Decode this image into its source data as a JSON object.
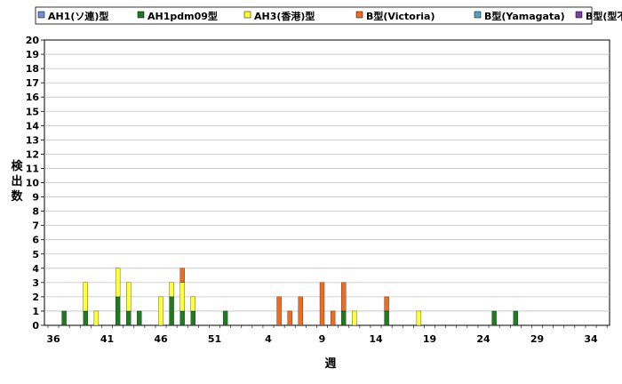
{
  "chart_data": {
    "type": "bar",
    "stacked": true,
    "xlabel": "週",
    "ylabel": "検出数",
    "ylim": [
      0,
      20
    ],
    "yticks": [
      0,
      1,
      2,
      3,
      4,
      5,
      6,
      7,
      8,
      9,
      10,
      11,
      12,
      13,
      14,
      15,
      16,
      17,
      18,
      19,
      20
    ],
    "grid": true,
    "legend_position": "top",
    "x_tick_labels": [
      "36",
      "41",
      "46",
      "51",
      "4",
      "9",
      "14",
      "19",
      "24",
      "29",
      "34"
    ],
    "categories": [
      "36",
      "37",
      "38",
      "39",
      "40",
      "41",
      "42",
      "43",
      "44",
      "45",
      "46",
      "47",
      "48",
      "49",
      "50",
      "51",
      "52",
      "53",
      "1",
      "2",
      "3",
      "4",
      "5",
      "6",
      "7",
      "8",
      "9",
      "10",
      "11",
      "12",
      "13",
      "14",
      "15",
      "16",
      "17",
      "18",
      "19",
      "20",
      "21",
      "22",
      "23",
      "24",
      "25",
      "26",
      "27",
      "28",
      "29",
      "30",
      "31",
      "32",
      "33",
      "34",
      "35"
    ],
    "series": [
      {
        "name": "AH1(ソ連)型",
        "color": "#6f8fd6",
        "values": [
          0,
          0,
          0,
          0,
          0,
          0,
          0,
          0,
          0,
          0,
          0,
          0,
          0,
          0,
          0,
          0,
          0,
          0,
          0,
          0,
          0,
          0,
          0,
          0,
          0,
          0,
          0,
          0,
          0,
          0,
          0,
          0,
          0,
          0,
          0,
          0,
          0,
          0,
          0,
          0,
          0,
          0,
          0,
          0,
          0,
          0,
          0,
          0,
          0,
          0,
          0,
          0,
          0
        ]
      },
      {
        "name": "AH1pdm09型",
        "color": "#1e7b1e",
        "values": [
          0,
          1,
          0,
          1,
          0,
          0,
          2,
          1,
          1,
          0,
          0,
          2,
          1,
          1,
          0,
          0,
          1,
          0,
          0,
          0,
          0,
          0,
          0,
          0,
          0,
          0,
          0,
          1,
          0,
          0,
          0,
          1,
          0,
          0,
          0,
          0,
          0,
          0,
          0,
          0,
          0,
          1,
          0,
          1,
          0,
          0,
          0,
          0,
          0,
          0,
          0,
          0,
          0
        ]
      },
      {
        "name": "AH3(香港)型",
        "color": "#ffff33",
        "values": [
          0,
          0,
          0,
          2,
          1,
          0,
          2,
          2,
          0,
          0,
          2,
          1,
          2,
          1,
          0,
          0,
          0,
          0,
          0,
          0,
          0,
          0,
          0,
          0,
          0,
          0,
          0,
          0,
          1,
          0,
          0,
          0,
          0,
          0,
          1,
          0,
          0,
          0,
          0,
          0,
          0,
          0,
          0,
          0,
          0,
          0,
          0,
          0,
          0,
          0,
          0,
          0,
          0
        ]
      },
      {
        "name": "B型(Victoria)",
        "color": "#ee6b22",
        "values": [
          0,
          0,
          0,
          0,
          0,
          0,
          0,
          0,
          0,
          0,
          0,
          0,
          1,
          0,
          0,
          0,
          0,
          0,
          0,
          0,
          0,
          2,
          1,
          2,
          0,
          3,
          1,
          2,
          0,
          0,
          0,
          1,
          0,
          0,
          0,
          0,
          0,
          0,
          0,
          0,
          0,
          0,
          0,
          0,
          0,
          0,
          0,
          0,
          0,
          0,
          0,
          0,
          0
        ]
      },
      {
        "name": "B型(Yamagata)",
        "color": "#4ba3c8",
        "values": [
          0,
          0,
          0,
          0,
          0,
          0,
          0,
          0,
          0,
          0,
          0,
          0,
          0,
          0,
          0,
          0,
          0,
          0,
          0,
          0,
          0,
          0,
          0,
          0,
          0,
          0,
          0,
          0,
          0,
          0,
          0,
          0,
          0,
          0,
          0,
          0,
          0,
          0,
          0,
          0,
          0,
          0,
          0,
          0,
          0,
          0,
          0,
          0,
          0,
          0,
          0,
          0,
          0
        ]
      },
      {
        "name": "B型(型不明)",
        "color": "#7b3fa0",
        "values": [
          0,
          0,
          0,
          0,
          0,
          0,
          0,
          0,
          0,
          0,
          0,
          0,
          0,
          0,
          0,
          0,
          0,
          0,
          0,
          0,
          0,
          0,
          0,
          0,
          0,
          0,
          0,
          0,
          0,
          0,
          0,
          0,
          0,
          0,
          0,
          0,
          0,
          0,
          0,
          0,
          0,
          0,
          0,
          0,
          0,
          0,
          0,
          0,
          0,
          0,
          0,
          0,
          0
        ]
      }
    ]
  }
}
